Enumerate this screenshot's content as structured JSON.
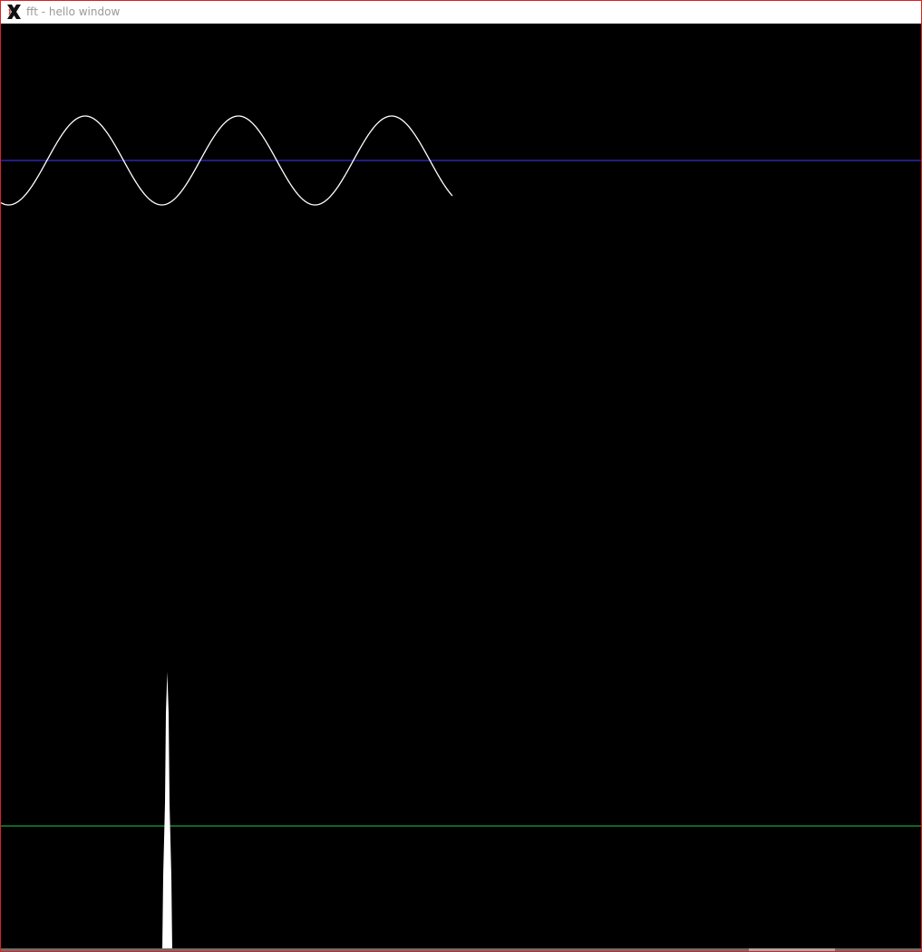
{
  "window": {
    "title": "fft - hello window"
  },
  "icons": {
    "app_icon": "x-window-icon"
  },
  "colors": {
    "border": "#e02020",
    "time_axis": "#3b3bff",
    "freq_axis": "#22cc44",
    "waveform": "#ffffff",
    "waveform_peak_tint": "#ffb0c0",
    "spectrum": "#ffffff",
    "background": "#000000"
  }
}
